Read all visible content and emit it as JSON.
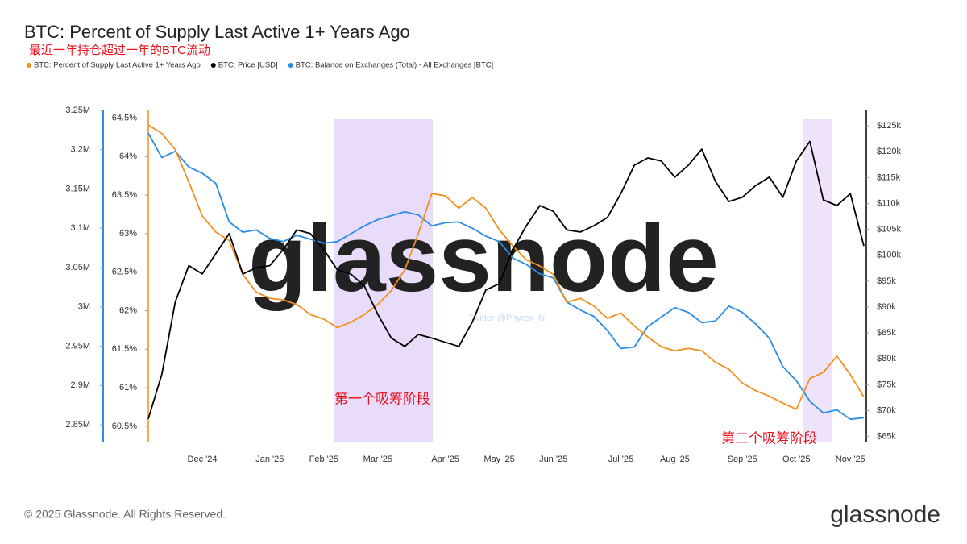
{
  "chart_data": {
    "type": "line",
    "title": "BTC: Percent of Supply Last Active 1+ Years Ago",
    "subtitle": "最近一年持仓超过一年的BTC流动",
    "watermark": "glassnode",
    "credit": "Twitter @Phyrex_Ni",
    "annotations": [
      "第一个吸筹阶段",
      "第二个吸筹阶段"
    ],
    "categories": [
      null,
      null,
      null,
      null,
      "Dec '24",
      null,
      null,
      null,
      null,
      "Jan '25",
      null,
      null,
      null,
      "Feb '25",
      null,
      null,
      null,
      "Mar '25",
      null,
      null,
      null,
      null,
      "Apr '25",
      null,
      null,
      null,
      "May '25",
      null,
      null,
      null,
      "Jun '25",
      null,
      null,
      null,
      null,
      "Jul '25",
      null,
      null,
      null,
      "Aug '25",
      null,
      null,
      null,
      null,
      "Sep '25",
      null,
      null,
      null,
      "Oct '25",
      null,
      null,
      null,
      "Nov '25",
      null
    ],
    "series": [
      {
        "name": "BTC: Percent of Supply Last Active 1+ Years Ago",
        "color": "#f0901e",
        "axis": "y",
        "values": [
          64.41,
          64.3,
          64.09,
          63.67,
          63.23,
          63.02,
          62.91,
          62.47,
          62.24,
          62.16,
          62.14,
          62.08,
          61.95,
          61.89,
          61.78,
          61.85,
          61.95,
          62.08,
          62.26,
          62.53,
          63.0,
          63.52,
          63.49,
          63.33,
          63.47,
          63.33,
          63.05,
          62.84,
          62.66,
          62.58,
          62.47,
          62.11,
          62.16,
          62.06,
          61.9,
          61.97,
          61.8,
          61.66,
          61.53,
          61.48,
          61.51,
          61.48,
          61.33,
          61.24,
          61.06,
          60.96,
          60.89,
          60.8,
          60.72,
          61.12,
          61.2,
          61.41,
          61.17,
          60.88
        ]
      },
      {
        "name": "BTC: Price [USD]",
        "color": "#000000",
        "axis": "y2",
        "values": [
          68400,
          77000,
          91000,
          98000,
          96400,
          100300,
          104200,
          96400,
          97600,
          98000,
          101100,
          104900,
          104200,
          101100,
          97200,
          96400,
          94100,
          88600,
          84000,
          82400,
          84700,
          84000,
          83200,
          82400,
          87100,
          93300,
          94500,
          101100,
          105700,
          109600,
          108500,
          104900,
          104500,
          105700,
          107300,
          111900,
          117400,
          118800,
          118200,
          115100,
          117400,
          120500,
          114300,
          110400,
          111200,
          113500,
          115100,
          111200,
          118200,
          122000,
          110700,
          109600,
          111900,
          101800
        ]
      },
      {
        "name": "BTC: Balance on Exchanges (Total) - All Exchanges [BTC]",
        "color": "#2a8de6",
        "axis": "y3",
        "values": [
          3221000,
          3190000,
          3198000,
          3178000,
          3170000,
          3157000,
          3108000,
          3095000,
          3098000,
          3087000,
          3083000,
          3091000,
          3086000,
          3081000,
          3083000,
          3093000,
          3103000,
          3111000,
          3116000,
          3121000,
          3117000,
          3103000,
          3107000,
          3108000,
          3100000,
          3090000,
          3083000,
          3062000,
          3054000,
          3042000,
          3037000,
          3006000,
          2996000,
          2988000,
          2970000,
          2947000,
          2949000,
          2975000,
          2987000,
          2999000,
          2993000,
          2980000,
          2982000,
          3001000,
          2993000,
          2978000,
          2960000,
          2924000,
          2906000,
          2880000,
          2865000,
          2869000,
          2857000,
          2859000
        ]
      }
    ],
    "ylim": [
      60.3,
      64.62
    ],
    "yticks": [
      {
        "value": 60.5,
        "label": "60.5%"
      },
      {
        "value": 61,
        "label": "61%"
      },
      {
        "value": 61.5,
        "label": "61.5%"
      },
      {
        "value": 62,
        "label": "62%"
      },
      {
        "value": 62.5,
        "label": "62.5%"
      },
      {
        "value": 63,
        "label": "63%"
      },
      {
        "value": 63.5,
        "label": "63.5%"
      },
      {
        "value": 64,
        "label": "64%"
      },
      {
        "value": 64.5,
        "label": "64.5%"
      }
    ],
    "y2lim": [
      64000,
      128300
    ],
    "y2ticks": [
      {
        "value": 65000,
        "label": "$65k"
      },
      {
        "value": 70000,
        "label": "$70k"
      },
      {
        "value": 75000,
        "label": "$75k"
      },
      {
        "value": 80000,
        "label": "$80k"
      },
      {
        "value": 85000,
        "label": "$85k"
      },
      {
        "value": 90000,
        "label": "$90k"
      },
      {
        "value": 95000,
        "label": "$95k"
      },
      {
        "value": 100000,
        "label": "$100k"
      },
      {
        "value": 105000,
        "label": "$105k"
      },
      {
        "value": 110000,
        "label": "$110k"
      },
      {
        "value": 115000,
        "label": "$115k"
      },
      {
        "value": 120000,
        "label": "$120k"
      },
      {
        "value": 125000,
        "label": "$125k"
      }
    ],
    "y3lim": [
      2828500,
      3252000
    ],
    "y3ticks": [
      {
        "value": 2850000,
        "label": "2.85M"
      },
      {
        "value": 2900000,
        "label": "2.9M"
      },
      {
        "value": 2950000,
        "label": "2.95M"
      },
      {
        "value": 3000000,
        "label": "3M"
      },
      {
        "value": 3050000,
        "label": "3.05M"
      },
      {
        "value": 3100000,
        "label": "3.1M"
      },
      {
        "value": 3150000,
        "label": "3.15M"
      },
      {
        "value": 3200000,
        "label": "3.2M"
      },
      {
        "value": 3250000,
        "label": "3.25M"
      }
    ],
    "grid": false
  },
  "footer": {
    "copyright": "© 2025 Glassnode. All Rights Reserved.",
    "logo": "glassnode"
  }
}
